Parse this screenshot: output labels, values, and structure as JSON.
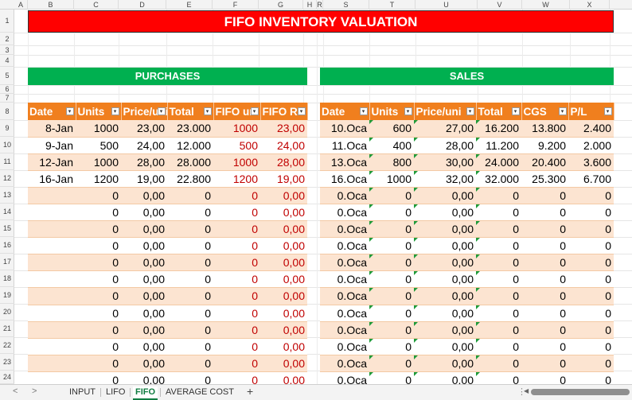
{
  "columns": [
    {
      "letter": "A",
      "w": 17
    },
    {
      "letter": "B",
      "w": 58
    },
    {
      "letter": "C",
      "w": 56
    },
    {
      "letter": "D",
      "w": 60
    },
    {
      "letter": "E",
      "w": 58
    },
    {
      "letter": "F",
      "w": 58
    },
    {
      "letter": "G",
      "w": 56
    },
    {
      "letter": "H",
      "w": 17
    },
    {
      "letter": "R",
      "w": 8
    },
    {
      "letter": "S",
      "w": 58
    },
    {
      "letter": "T",
      "w": 58
    },
    {
      "letter": "U",
      "w": 78
    },
    {
      "letter": "V",
      "w": 56
    },
    {
      "letter": "W",
      "w": 60
    },
    {
      "letter": "X",
      "w": 50
    }
  ],
  "row_numbers": [
    "1",
    "2",
    "3",
    "4",
    "5",
    "6",
    "7",
    "8",
    "9",
    "10",
    "11",
    "12",
    "13",
    "14",
    "15",
    "16",
    "17",
    "18",
    "19",
    "20",
    "21",
    "22",
    "23",
    "24"
  ],
  "title": "FIFO INVENTORY VALUATION",
  "purchases": {
    "label": "PURCHASES",
    "headers": [
      "Date",
      "Units",
      "Price/uni",
      "Total",
      "FIFO uni",
      "FIFO Ra"
    ],
    "rows": [
      [
        "8-Jan",
        "1000",
        "23,00",
        "23.000",
        "1000",
        "23,00"
      ],
      [
        "9-Jan",
        "500",
        "24,00",
        "12.000",
        "500",
        "24,00"
      ],
      [
        "12-Jan",
        "1000",
        "28,00",
        "28.000",
        "1000",
        "28,00"
      ],
      [
        "16-Jan",
        "1200",
        "19,00",
        "22.800",
        "1200",
        "19,00"
      ],
      [
        "",
        "0",
        "0,00",
        "0",
        "0",
        "0,00"
      ],
      [
        "",
        "0",
        "0,00",
        "0",
        "0",
        "0,00"
      ],
      [
        "",
        "0",
        "0,00",
        "0",
        "0",
        "0,00"
      ],
      [
        "",
        "0",
        "0,00",
        "0",
        "0",
        "0,00"
      ],
      [
        "",
        "0",
        "0,00",
        "0",
        "0",
        "0,00"
      ],
      [
        "",
        "0",
        "0,00",
        "0",
        "0",
        "0,00"
      ],
      [
        "",
        "0",
        "0,00",
        "0",
        "0",
        "0,00"
      ],
      [
        "",
        "0",
        "0,00",
        "0",
        "0",
        "0,00"
      ],
      [
        "",
        "0",
        "0,00",
        "0",
        "0",
        "0,00"
      ],
      [
        "",
        "0",
        "0,00",
        "0",
        "0",
        "0,00"
      ],
      [
        "",
        "0",
        "0,00",
        "0",
        "0",
        "0,00"
      ],
      [
        "",
        "0",
        "0,00",
        "0",
        "0",
        "0,00"
      ]
    ]
  },
  "sales": {
    "label": "SALES",
    "headers": [
      "Date",
      "Units",
      "Price/uni",
      "Total",
      "CGS",
      "P/L"
    ],
    "rows": [
      [
        "10.Oca",
        "600",
        "27,00",
        "16.200",
        "13.800",
        "2.400"
      ],
      [
        "11.Oca",
        "400",
        "28,00",
        "11.200",
        "9.200",
        "2.000"
      ],
      [
        "13.Oca",
        "800",
        "30,00",
        "24.000",
        "20.400",
        "3.600"
      ],
      [
        "16.Oca",
        "1000",
        "32,00",
        "32.000",
        "25.300",
        "6.700"
      ],
      [
        "0.Oca",
        "0",
        "0,00",
        "0",
        "0",
        "0"
      ],
      [
        "0.Oca",
        "0",
        "0,00",
        "0",
        "0",
        "0"
      ],
      [
        "0.Oca",
        "0",
        "0,00",
        "0",
        "0",
        "0"
      ],
      [
        "0.Oca",
        "0",
        "0,00",
        "0",
        "0",
        "0"
      ],
      [
        "0.Oca",
        "0",
        "0,00",
        "0",
        "0",
        "0"
      ],
      [
        "0.Oca",
        "0",
        "0,00",
        "0",
        "0",
        "0"
      ],
      [
        "0.Oca",
        "0",
        "0,00",
        "0",
        "0",
        "0"
      ],
      [
        "0.Oca",
        "0",
        "0,00",
        "0",
        "0",
        "0"
      ],
      [
        "0.Oca",
        "0",
        "0,00",
        "0",
        "0",
        "0"
      ],
      [
        "0.Oca",
        "0",
        "0,00",
        "0",
        "0",
        "0"
      ],
      [
        "0.Oca",
        "0",
        "0,00",
        "0",
        "0",
        "0"
      ],
      [
        "0.Oca",
        "0",
        "0,00",
        "0",
        "0",
        "0"
      ]
    ]
  },
  "tabs": {
    "prev": "<",
    "next": ">",
    "items": [
      "INPUT",
      "LIFO",
      "FIFO",
      "AVERAGE COST"
    ],
    "active": "FIFO",
    "add": "+",
    "dots": "⋮"
  },
  "colors": {
    "title_bg": "#ff0000",
    "section_bg": "#00b050",
    "header_bg": "#f07f1e",
    "band": "#fce4d1",
    "fifo_text": "#c00000"
  }
}
